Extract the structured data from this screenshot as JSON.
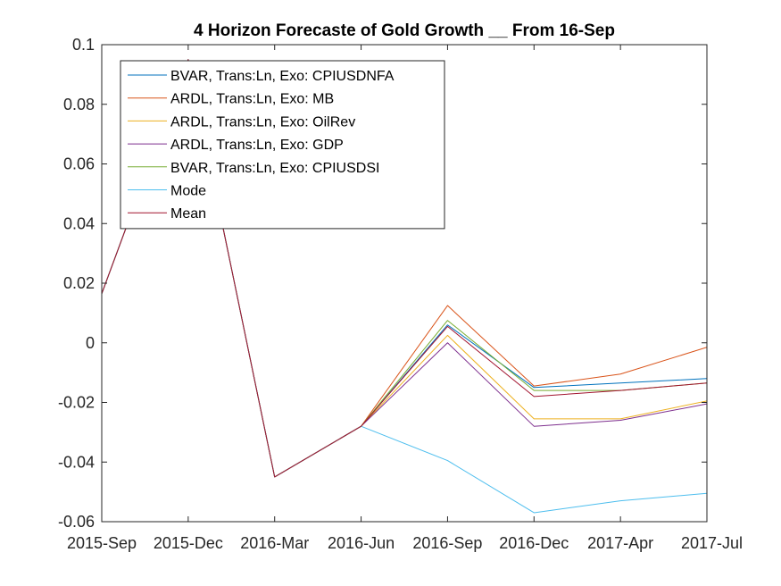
{
  "chart_data": {
    "type": "line",
    "title": "4 Horizon Forecaste of Gold Growth __ From 16-Sep",
    "xlabel": "",
    "ylabel": "",
    "categories": [
      "2015-Sep",
      "2015-Dec",
      "2016-Mar",
      "2016-Jun",
      "2016-Sep",
      "2016-Dec",
      "2017-Apr",
      "2017-Jul"
    ],
    "x_index": [
      0,
      1,
      2,
      3,
      4,
      5,
      6,
      7
    ],
    "ylim": [
      -0.06,
      0.1
    ],
    "yticks": [
      -0.06,
      -0.04,
      -0.02,
      0,
      0.02,
      0.04,
      0.06,
      0.08,
      0.1
    ],
    "ytick_labels": [
      "-0.06",
      "-0.04",
      "-0.02",
      "0",
      "0.02",
      "0.04",
      "0.06",
      "0.08",
      "0.1"
    ],
    "legend_placement": "top-left",
    "grid": false,
    "series": [
      {
        "name": "BVAR, Trans:Ln, Exo: CPIUSDNFA",
        "color": "#0072BD",
        "values": [
          0.0165,
          0.095,
          -0.045,
          -0.028,
          0.006,
          -0.015,
          -0.0135,
          -0.012
        ]
      },
      {
        "name": "ARDL, Trans:Ln, Exo: MB",
        "color": "#D95319",
        "values": [
          0.0165,
          0.095,
          -0.045,
          -0.028,
          0.0125,
          -0.0145,
          -0.0105,
          -0.0015
        ]
      },
      {
        "name": "ARDL, Trans:Ln, Exo: OilRev",
        "color": "#EDB120",
        "values": [
          0.0165,
          0.095,
          -0.045,
          -0.028,
          0.0025,
          -0.0255,
          -0.0255,
          -0.0195
        ]
      },
      {
        "name": "ARDL, Trans:Ln, Exo: GDP",
        "color": "#7E2F8E",
        "values": [
          0.0165,
          0.095,
          -0.045,
          -0.028,
          0.0,
          -0.028,
          -0.026,
          -0.0205
        ]
      },
      {
        "name": "BVAR, Trans:Ln, Exo: CPIUSDSI",
        "color": "#77AC30",
        "values": [
          0.0165,
          0.095,
          -0.045,
          -0.028,
          0.0075,
          -0.016,
          -0.016,
          -0.0135
        ]
      },
      {
        "name": "Mode",
        "color": "#4DBEEE",
        "values": [
          0.0165,
          0.095,
          -0.045,
          -0.028,
          -0.0395,
          -0.057,
          -0.053,
          -0.0505
        ]
      },
      {
        "name": "Mean",
        "color": "#A2142F",
        "values": [
          0.0165,
          0.095,
          -0.045,
          -0.028,
          0.0055,
          -0.018,
          -0.016,
          -0.0135
        ]
      }
    ]
  }
}
